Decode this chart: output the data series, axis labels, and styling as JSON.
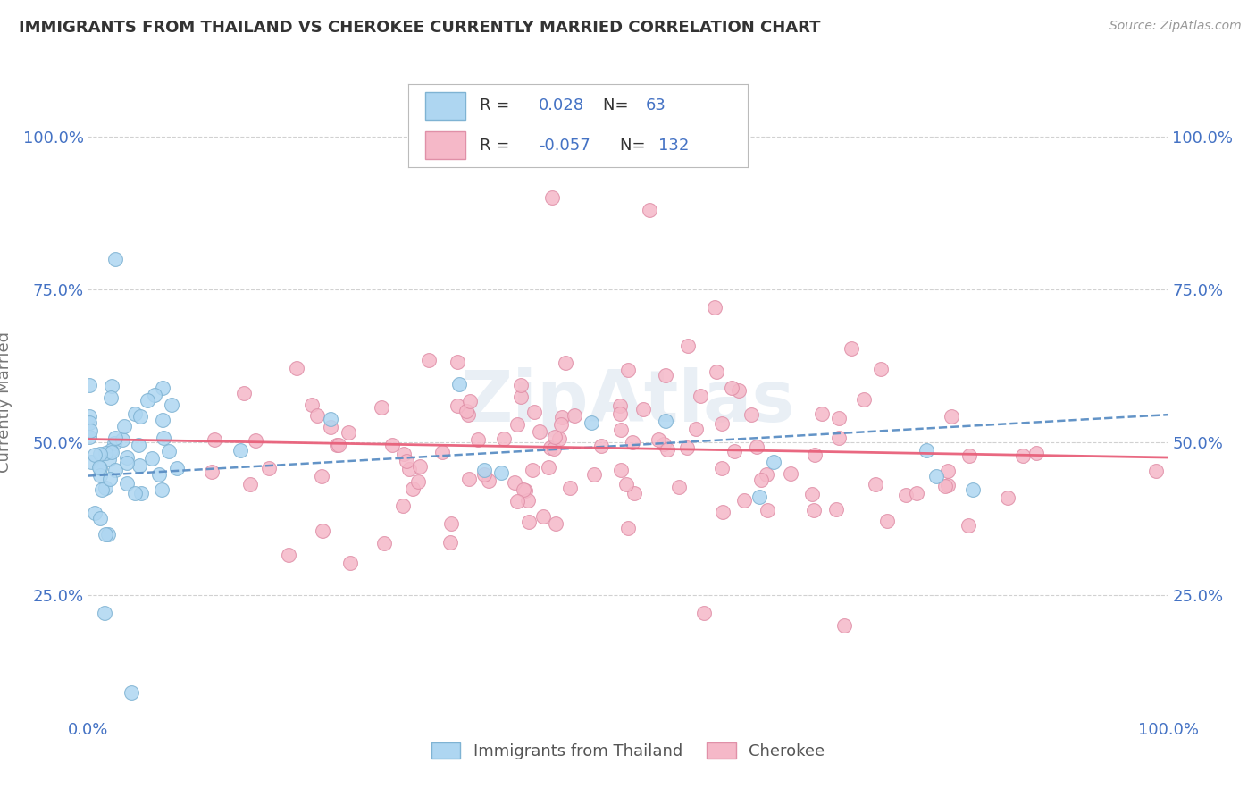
{
  "title": "IMMIGRANTS FROM THAILAND VS CHEROKEE CURRENTLY MARRIED CORRELATION CHART",
  "source": "Source: ZipAtlas.com",
  "ylabel": "Currently Married",
  "yticks": [
    0.25,
    0.5,
    0.75,
    1.0
  ],
  "ytick_labels": [
    "25.0%",
    "50.0%",
    "75.0%",
    "100.0%"
  ],
  "color_blue_fill": "#AED6F1",
  "color_blue_edge": "#7FB3D3",
  "color_pink_fill": "#F5B8C8",
  "color_pink_edge": "#E090A8",
  "color_blue_line": "#5B8EC4",
  "color_pink_line": "#E8607A",
  "color_tick": "#4472C4",
  "watermark": "ZipAtlas",
  "watermark_color": "#C8D8E8",
  "r_blue": "0.028",
  "n_blue": "63",
  "r_pink": "-0.057",
  "n_pink": "132",
  "blue_intercept": 0.445,
  "blue_slope": 0.001,
  "pink_intercept": 0.505,
  "pink_slope": -0.0003,
  "xlim": [
    0,
    100
  ],
  "ylim": [
    0.05,
    1.08
  ]
}
